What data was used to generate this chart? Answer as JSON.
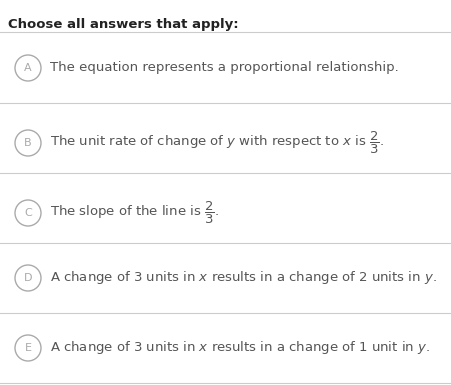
{
  "title": "Choose all answers that apply:",
  "background_color": "#ffffff",
  "text_color": "#555555",
  "circle_color": "#aaaaaa",
  "line_color": "#cccccc",
  "options": [
    {
      "letter": "A",
      "latex": "The equation represents a proportional relationship."
    },
    {
      "letter": "B",
      "latex": "The unit rate of change of $y$ with respect to $x$ is $\\dfrac{2}{3}$."
    },
    {
      "letter": "C",
      "latex": "The slope of the line is $\\dfrac{2}{3}$."
    },
    {
      "letter": "D",
      "latex": "A change of $3$ units in $x$ results in a change of $2$ units in $y$."
    },
    {
      "letter": "E",
      "latex": "A change of $3$ units in $x$ results in a change of $1$ unit in $y$."
    }
  ],
  "title_fontsize": 9.5,
  "option_fontsize": 9.5,
  "figsize": [
    4.51,
    3.85
  ],
  "dpi": 100
}
